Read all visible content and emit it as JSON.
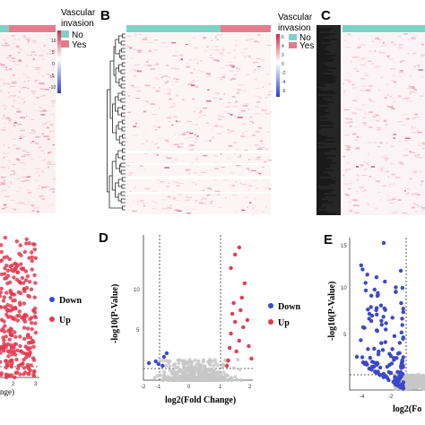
{
  "colors": {
    "no": "#7fd1c6",
    "yes": "#e57c8e",
    "high": "#d7263d",
    "low": "#2b3fd4",
    "down": "#3b49c9",
    "up": "#e23a50",
    "ns": "#c7c7c7"
  },
  "panels": {
    "B": "B",
    "C": "C",
    "D": "D",
    "E": "E"
  },
  "heatmap_legends": [
    {
      "title_line1": "Vascular",
      "title_line2": "invasion",
      "no": "No",
      "yes": "Yes",
      "scale_ticks": [
        "10",
        "5",
        "0",
        "-5",
        "-10"
      ]
    },
    {
      "title_line1": "Vascular",
      "title_line2": "invasion",
      "no": "No",
      "yes": "Yes",
      "scale_ticks": [
        "6",
        "4",
        "2",
        "0",
        "-2",
        "-4",
        "-6"
      ]
    }
  ],
  "volcano_legends": [
    {
      "down": "Down",
      "up": "Up"
    },
    {
      "down": "Down",
      "up": "Up"
    }
  ],
  "chart_data": [
    {
      "type": "scatter",
      "panel": "",
      "xlabel": "nge)",
      "x_ticks": [
        "2",
        "3"
      ],
      "series": [
        {
          "name": "Down",
          "values": []
        },
        {
          "name": "Up",
          "values": []
        }
      ]
    },
    {
      "type": "scatter",
      "panel": "D",
      "xlabel": "log2(Fold Change)",
      "ylabel": "-log10(P-Value)",
      "xlim": [
        -2,
        2
      ],
      "ylim": [
        0,
        15
      ],
      "x_ticks": [
        "-2",
        "-1",
        "0",
        "1",
        "2"
      ],
      "y_ticks": [
        "5",
        "10"
      ],
      "threshold_x": [
        -1,
        1
      ],
      "threshold_y": 1.3,
      "series": [
        {
          "name": "Down",
          "points": [
            [
              -1.8,
              1.9
            ],
            [
              -1.55,
              2.1
            ],
            [
              -1.45,
              1.8
            ],
            [
              -1.25,
              2.6
            ],
            [
              -1.15,
              3.0
            ],
            [
              -1.3,
              1.6
            ]
          ]
        },
        {
          "name": "Up",
          "points": [
            [
              1.05,
              1.6
            ],
            [
              1.1,
              2.2
            ],
            [
              1.15,
              3.6
            ],
            [
              1.2,
              5.2
            ],
            [
              1.25,
              7.4
            ],
            [
              1.3,
              8.6
            ],
            [
              1.35,
              6.5
            ],
            [
              1.4,
              3.2
            ],
            [
              1.5,
              4.4
            ],
            [
              1.55,
              7.8
            ],
            [
              1.6,
              9.2
            ],
            [
              1.65,
              5.9
            ],
            [
              1.7,
              10.8
            ],
            [
              1.35,
              14.0
            ],
            [
              1.5,
              14.8
            ],
            [
              1.8,
              6.7
            ],
            [
              1.85,
              3.8
            ],
            [
              1.95,
              2.4
            ],
            [
              1.2,
              12.5
            ]
          ]
        }
      ]
    },
    {
      "type": "scatter",
      "panel": "E",
      "xlabel": "log2(Fo",
      "ylabel": "-log10(P-Value)",
      "x_ticks": [
        "-4",
        "-2"
      ],
      "y_ticks": [
        "5",
        "10",
        "15"
      ],
      "series": [
        {
          "name": "Down",
          "values": []
        }
      ]
    }
  ]
}
